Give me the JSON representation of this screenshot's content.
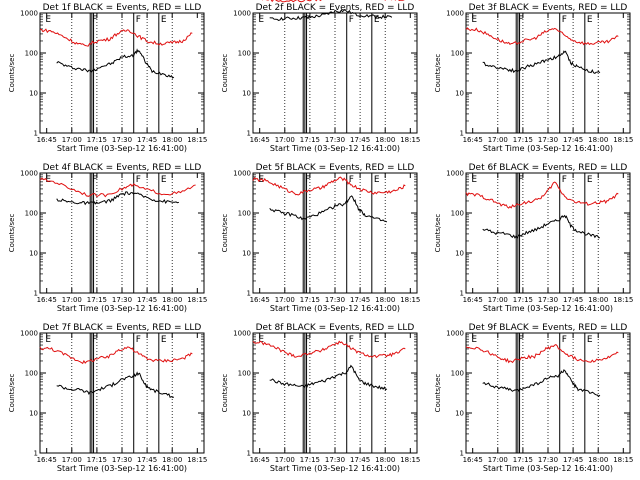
{
  "figure": {
    "colors": {
      "events": "#000000",
      "lld": "#e01010"
    },
    "y_axis": {
      "label": "Counts/sec",
      "scale": "log",
      "ylim": [
        1,
        1000
      ],
      "tick_labels": [
        "1",
        "10",
        "100",
        "1000"
      ]
    },
    "x_axis": {
      "label": "Start Time (03-Sep-12 16:41:00)",
      "tick_labels": [
        "16:45",
        "17:00",
        "17:15",
        "17:30",
        "17:45",
        "18:00",
        "18:15"
      ]
    },
    "markers": {
      "dotted_times": [
        "17:00",
        "17:15",
        "17:30",
        "17:45",
        "18:00"
      ],
      "solid_times": [
        "17:11",
        "17:12",
        "17:13",
        "17:37",
        "17:52"
      ],
      "letters": [
        {
          "text": "E",
          "time": "16:43"
        },
        {
          "text": "F",
          "time": "17:11"
        },
        {
          "text": "F",
          "time": "17:37"
        },
        {
          "text": "E",
          "time": "17:52"
        }
      ]
    }
  },
  "chart_data": [
    {
      "type": "line",
      "title": "Det 1f BLACK = Events, RED = LLD",
      "series": [
        {
          "name": "Events",
          "x": [
            "16:51",
            "16:58",
            "17:05",
            "17:11",
            "17:17",
            "17:24",
            "17:30",
            "17:36",
            "17:40",
            "17:44",
            "17:48",
            "17:55",
            "18:01"
          ],
          "y": [
            60,
            45,
            40,
            35,
            45,
            55,
            80,
            85,
            120,
            60,
            35,
            30,
            25
          ]
        },
        {
          "name": "LLD",
          "x": [
            "16:41",
            "16:48",
            "16:55",
            "17:02",
            "17:08",
            "17:15",
            "17:22",
            "17:28",
            "17:34",
            "17:40",
            "17:46",
            "17:53",
            "18:00",
            "18:06",
            "18:12"
          ],
          "y": [
            380,
            350,
            260,
            180,
            150,
            200,
            220,
            320,
            380,
            260,
            190,
            170,
            180,
            200,
            310
          ]
        }
      ]
    },
    {
      "type": "line",
      "title": "Det 2f BLACK = Events, RED = LLD",
      "series": [
        {
          "name": "Events",
          "x": [
            "16:51",
            "16:58",
            "17:05",
            "17:11",
            "17:17",
            "17:24",
            "17:30",
            "17:36",
            "17:43",
            "17:50",
            "17:57",
            "18:04"
          ],
          "y": [
            700,
            720,
            740,
            760,
            800,
            900,
            1100,
            1150,
            900,
            850,
            800,
            780
          ]
        },
        {
          "name": "LLD",
          "x": [
            "16:41",
            "16:50",
            "17:00",
            "17:10",
            "17:20",
            "17:30",
            "17:36",
            "17:45",
            "17:55",
            "18:05",
            "18:14"
          ],
          "y": [
            2400,
            2200,
            2000,
            2050,
            2200,
            2400,
            2800,
            2400,
            2300,
            2200,
            2300
          ]
        }
      ]
    },
    {
      "type": "line",
      "title": "Det 3f BLACK = Events, RED = LLD",
      "series": [
        {
          "name": "Events",
          "x": [
            "16:51",
            "16:58",
            "17:05",
            "17:11",
            "17:17",
            "17:24",
            "17:30",
            "17:36",
            "17:40",
            "17:44",
            "17:48",
            "17:55",
            "18:01"
          ],
          "y": [
            55,
            45,
            40,
            35,
            45,
            55,
            70,
            80,
            110,
            55,
            45,
            35,
            32
          ]
        },
        {
          "name": "LLD",
          "x": [
            "16:41",
            "16:48",
            "16:55",
            "17:02",
            "17:08",
            "17:15",
            "17:22",
            "17:28",
            "17:34",
            "17:40",
            "17:46",
            "17:53",
            "18:00",
            "18:06",
            "18:12"
          ],
          "y": [
            400,
            380,
            280,
            200,
            160,
            200,
            230,
            330,
            420,
            270,
            200,
            170,
            180,
            190,
            260
          ]
        }
      ]
    },
    {
      "type": "line",
      "title": "Det 4f BLACK = Events, RED = LLD",
      "series": [
        {
          "name": "Events",
          "x": [
            "16:51",
            "16:58",
            "17:05",
            "17:11",
            "17:17",
            "17:24",
            "17:30",
            "17:36",
            "17:43",
            "17:50",
            "17:57",
            "18:04"
          ],
          "y": [
            220,
            190,
            180,
            175,
            180,
            210,
            300,
            320,
            260,
            210,
            190,
            185
          ]
        },
        {
          "name": "LLD",
          "x": [
            "16:41",
            "16:50",
            "17:00",
            "17:10",
            "17:20",
            "17:30",
            "17:36",
            "17:45",
            "17:55",
            "18:05",
            "18:14"
          ],
          "y": [
            700,
            600,
            400,
            280,
            280,
            400,
            500,
            380,
            300,
            320,
            500
          ]
        }
      ]
    },
    {
      "type": "line",
      "title": "Det 5f BLACK = Events, RED = LLD",
      "series": [
        {
          "name": "Events",
          "x": [
            "16:51",
            "16:58",
            "17:05",
            "17:11",
            "17:17",
            "17:24",
            "17:30",
            "17:36",
            "17:40",
            "17:44",
            "17:48",
            "17:55",
            "18:01"
          ],
          "y": [
            130,
            100,
            90,
            70,
            85,
            110,
            150,
            170,
            280,
            130,
            90,
            70,
            60
          ]
        },
        {
          "name": "LLD",
          "x": [
            "16:41",
            "16:48",
            "16:55",
            "17:02",
            "17:08",
            "17:15",
            "17:22",
            "17:28",
            "17:34",
            "17:40",
            "17:46",
            "17:53",
            "18:00",
            "18:06",
            "18:12"
          ],
          "y": [
            700,
            650,
            500,
            360,
            300,
            380,
            420,
            600,
            750,
            500,
            380,
            320,
            330,
            360,
            480
          ]
        }
      ]
    },
    {
      "type": "line",
      "title": "Det 6f BLACK = Events, RED = LLD",
      "series": [
        {
          "name": "Events",
          "x": [
            "16:51",
            "16:58",
            "17:05",
            "17:11",
            "17:17",
            "17:24",
            "17:30",
            "17:36",
            "17:40",
            "17:44",
            "17:48",
            "17:55",
            "18:01"
          ],
          "y": [
            40,
            32,
            30,
            25,
            32,
            40,
            55,
            65,
            90,
            45,
            35,
            28,
            24
          ]
        },
        {
          "name": "LLD",
          "x": [
            "16:41",
            "16:48",
            "16:55",
            "17:02",
            "17:08",
            "17:15",
            "17:22",
            "17:28",
            "17:34",
            "17:40",
            "17:46",
            "17:53",
            "18:00",
            "18:06",
            "18:12"
          ],
          "y": [
            300,
            280,
            220,
            160,
            140,
            180,
            200,
            280,
            600,
            260,
            190,
            170,
            180,
            200,
            300
          ]
        }
      ]
    },
    {
      "type": "line",
      "title": "Det 7f BLACK = Events, RED = LLD",
      "series": [
        {
          "name": "Events",
          "x": [
            "16:51",
            "16:58",
            "17:05",
            "17:11",
            "17:17",
            "17:24",
            "17:30",
            "17:36",
            "17:40",
            "17:44",
            "17:48",
            "17:55",
            "18:01"
          ],
          "y": [
            50,
            40,
            38,
            32,
            40,
            50,
            70,
            80,
            100,
            50,
            38,
            30,
            25
          ]
        },
        {
          "name": "LLD",
          "x": [
            "16:41",
            "16:48",
            "16:55",
            "17:02",
            "17:08",
            "17:15",
            "17:22",
            "17:28",
            "17:34",
            "17:40",
            "17:46",
            "17:53",
            "18:00",
            "18:06",
            "18:12"
          ],
          "y": [
            420,
            400,
            300,
            220,
            180,
            230,
            250,
            380,
            450,
            300,
            220,
            200,
            210,
            230,
            300
          ]
        }
      ]
    },
    {
      "type": "line",
      "title": "Det 8f BLACK = Events, RED = LLD",
      "series": [
        {
          "name": "Events",
          "x": [
            "16:51",
            "16:58",
            "17:05",
            "17:11",
            "17:17",
            "17:24",
            "17:30",
            "17:36",
            "17:40",
            "17:44",
            "17:48",
            "17:55",
            "18:01"
          ],
          "y": [
            70,
            55,
            50,
            45,
            55,
            65,
            85,
            100,
            150,
            70,
            55,
            45,
            40
          ]
        },
        {
          "name": "LLD",
          "x": [
            "16:41",
            "16:48",
            "16:55",
            "17:02",
            "17:08",
            "17:15",
            "17:22",
            "17:28",
            "17:34",
            "17:40",
            "17:46",
            "17:53",
            "18:00",
            "18:06",
            "18:12"
          ],
          "y": [
            600,
            550,
            420,
            300,
            260,
            320,
            360,
            500,
            600,
            400,
            300,
            260,
            270,
            300,
            400
          ]
        }
      ]
    },
    {
      "type": "line",
      "title": "Det 9f BLACK = Events, RED = LLD",
      "series": [
        {
          "name": "Events",
          "x": [
            "16:51",
            "16:58",
            "17:05",
            "17:11",
            "17:17",
            "17:24",
            "17:30",
            "17:36",
            "17:40",
            "17:44",
            "17:48",
            "17:55",
            "18:01"
          ],
          "y": [
            60,
            45,
            40,
            35,
            45,
            55,
            75,
            85,
            120,
            60,
            40,
            32,
            28
          ]
        },
        {
          "name": "LLD",
          "x": [
            "16:41",
            "16:48",
            "16:55",
            "17:02",
            "17:08",
            "17:15",
            "17:22",
            "17:28",
            "17:34",
            "17:40",
            "17:46",
            "17:53",
            "18:00",
            "18:06",
            "18:12"
          ],
          "y": [
            450,
            420,
            320,
            230,
            190,
            240,
            260,
            380,
            500,
            320,
            230,
            200,
            210,
            240,
            320
          ]
        }
      ]
    }
  ]
}
